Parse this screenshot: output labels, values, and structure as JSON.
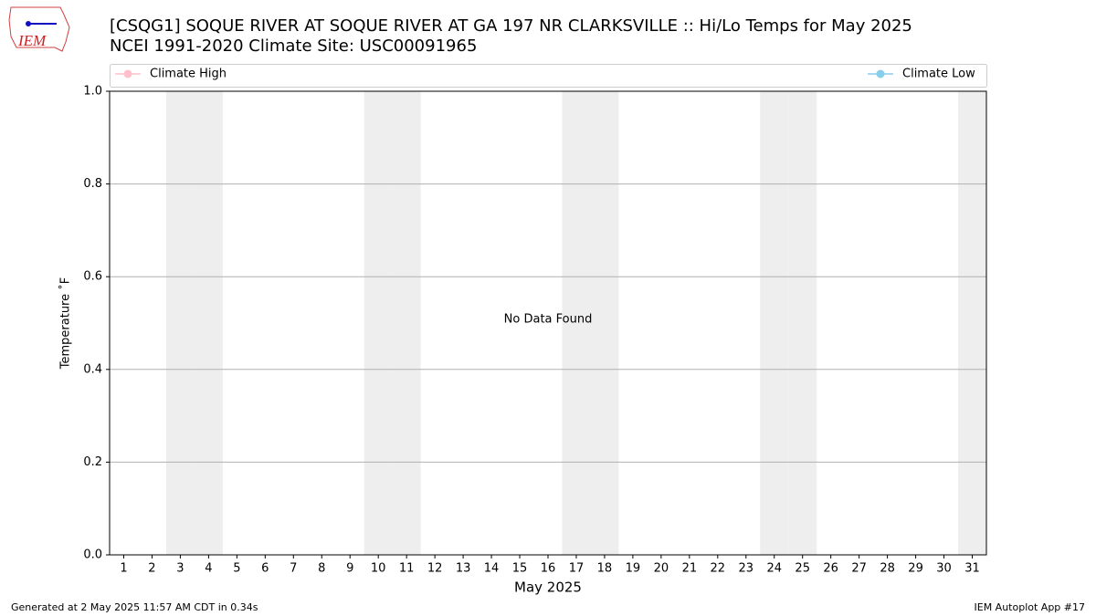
{
  "chart_data": {
    "type": "line",
    "title": "[CSQG1] SOQUE RIVER  AT SOQUE RIVER AT GA 197 NR CLARKSVILLE :: Hi/Lo Temps for May 2025",
    "subtitle": "NCEI 1991-2020 Climate Site: USC00091965",
    "logo_text": "IEM",
    "x_label": "May 2025",
    "y_label": "Temperature ˚F",
    "annotation": "No Data Found",
    "x": [
      1,
      2,
      3,
      4,
      5,
      6,
      7,
      8,
      9,
      10,
      11,
      12,
      13,
      14,
      15,
      16,
      17,
      18,
      19,
      20,
      21,
      22,
      23,
      24,
      25,
      26,
      27,
      28,
      29,
      30,
      31
    ],
    "series": [
      {
        "name": "Climate High",
        "color": "#ffc0cb",
        "values": [
          null,
          null,
          null,
          null,
          null,
          null,
          null,
          null,
          null,
          null,
          null,
          null,
          null,
          null,
          null,
          null,
          null,
          null,
          null,
          null,
          null,
          null,
          null,
          null,
          null,
          null,
          null,
          null,
          null,
          null,
          null
        ]
      },
      {
        "name": "Climate Low",
        "color": "#87ceeb",
        "values": [
          null,
          null,
          null,
          null,
          null,
          null,
          null,
          null,
          null,
          null,
          null,
          null,
          null,
          null,
          null,
          null,
          null,
          null,
          null,
          null,
          null,
          null,
          null,
          null,
          null,
          null,
          null,
          null,
          null,
          null,
          null
        ]
      }
    ],
    "shaded_days": [
      3,
      4,
      10,
      11,
      17,
      18,
      24,
      25,
      31
    ],
    "shade_color": "#eeeeee",
    "xlim": [
      0.5,
      31.5
    ],
    "xticks": [
      1,
      2,
      3,
      4,
      5,
      6,
      7,
      8,
      9,
      10,
      11,
      12,
      13,
      14,
      15,
      16,
      17,
      18,
      19,
      20,
      21,
      22,
      23,
      24,
      25,
      26,
      27,
      28,
      29,
      30,
      31
    ],
    "ylim": [
      0,
      1
    ],
    "yticks": [
      {
        "value": 0,
        "label": "0.0"
      },
      {
        "value": 0.2,
        "label": "0.2"
      },
      {
        "value": 0.4,
        "label": "0.4"
      },
      {
        "value": 0.6,
        "label": "0.6"
      },
      {
        "value": 0.8,
        "label": "0.8"
      },
      {
        "value": 1,
        "label": "1.0"
      }
    ],
    "grid": true,
    "footer_left": "Generated at 2 May 2025 11:57 AM CDT in 0.34s",
    "footer_right": "IEM Autoplot App #17"
  }
}
